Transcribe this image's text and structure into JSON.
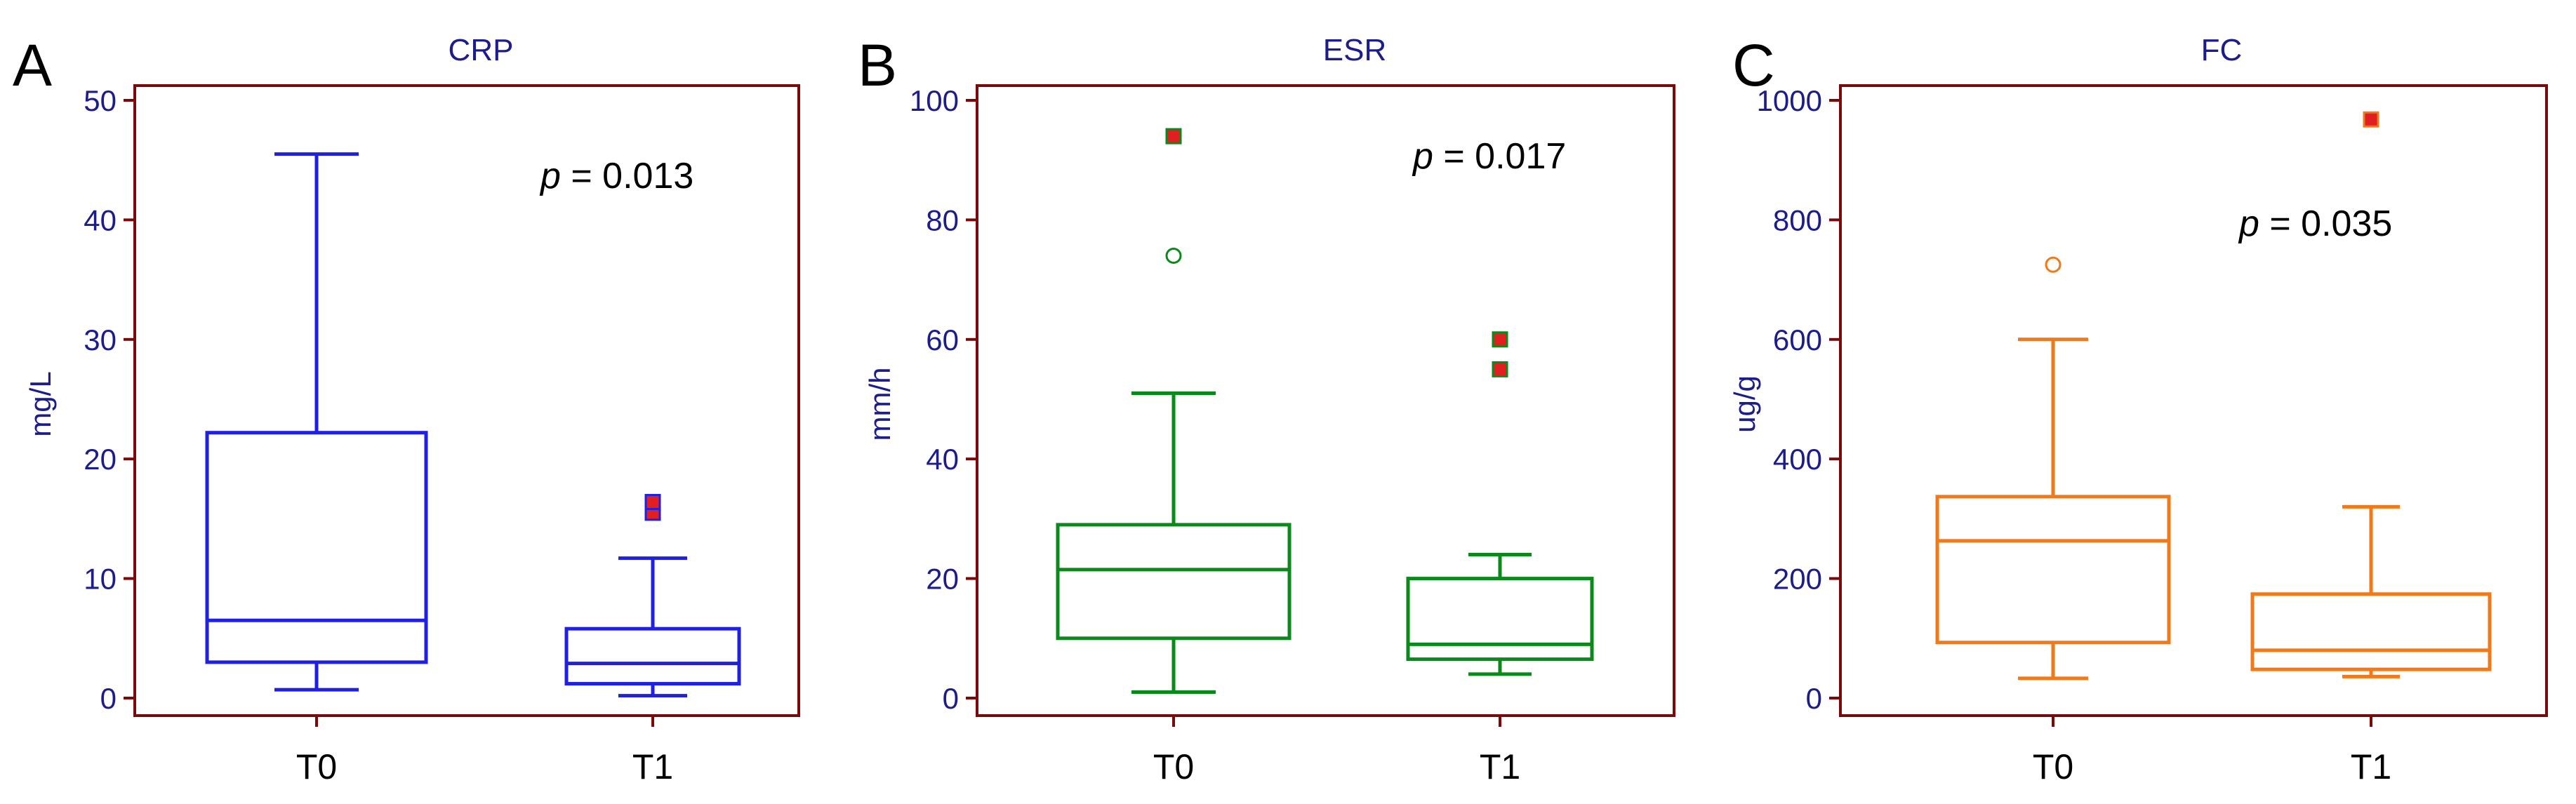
{
  "figure": {
    "colors": {
      "frame": "#7a0a0a",
      "axis_text": "#1c1c8c",
      "outlier_fill": "#e02020"
    }
  },
  "chart_data": [
    {
      "type": "boxplot",
      "panel": "A",
      "title": "CRP",
      "ylabel": "mg/L",
      "xlabel": "",
      "categories": [
        "T0",
        "T1"
      ],
      "ylim": [
        0,
        50
      ],
      "yticks": [
        0,
        10,
        20,
        30,
        40,
        50
      ],
      "color": "#1f1fe6",
      "annotation": {
        "prefix": "p",
        "text": " = 0.013"
      },
      "boxes": [
        {
          "category": "T0",
          "whisker_low": 0.7,
          "q1": 3.0,
          "median": 6.5,
          "q3": 22.2,
          "whisker_high": 45.5,
          "outliers": [],
          "far_outliers": []
        },
        {
          "category": "T1",
          "whisker_low": 0.2,
          "q1": 1.2,
          "median": 2.9,
          "q3": 5.8,
          "whisker_high": 11.7,
          "outliers": [],
          "far_outliers": [
            15.5,
            16.4
          ]
        }
      ]
    },
    {
      "type": "boxplot",
      "panel": "B",
      "title": "ESR",
      "ylabel": "mm/h",
      "xlabel": "",
      "categories": [
        "T0",
        "T1"
      ],
      "ylim": [
        0,
        100
      ],
      "yticks": [
        0,
        20,
        40,
        60,
        80,
        100
      ],
      "color": "#0a8a1a",
      "annotation": {
        "prefix": "p",
        "text": " = 0.017"
      },
      "boxes": [
        {
          "category": "T0",
          "whisker_low": 1,
          "q1": 10,
          "median": 21.5,
          "q3": 29,
          "whisker_high": 51,
          "outliers": [
            74
          ],
          "far_outliers": [
            94
          ]
        },
        {
          "category": "T1",
          "whisker_low": 4,
          "q1": 6.5,
          "median": 9,
          "q3": 20,
          "whisker_high": 24,
          "outliers": [],
          "far_outliers": [
            55,
            60
          ]
        }
      ]
    },
    {
      "type": "boxplot",
      "panel": "C",
      "title": "FC",
      "ylabel": "ug/g",
      "xlabel": "",
      "categories": [
        "T0",
        "T1"
      ],
      "ylim": [
        0,
        1000
      ],
      "yticks": [
        0,
        200,
        400,
        600,
        800,
        1000
      ],
      "color": "#f07a1a",
      "annotation": {
        "prefix": "p",
        "text": " = 0.035"
      },
      "boxes": [
        {
          "category": "T0",
          "whisker_low": 33,
          "q1": 93,
          "median": 263,
          "q3": 337,
          "whisker_high": 600,
          "outliers": [
            725
          ],
          "far_outliers": []
        },
        {
          "category": "T1",
          "whisker_low": 36,
          "q1": 48,
          "median": 80,
          "q3": 174,
          "whisker_high": 320,
          "outliers": [],
          "far_outliers": [
            968
          ]
        }
      ]
    }
  ]
}
